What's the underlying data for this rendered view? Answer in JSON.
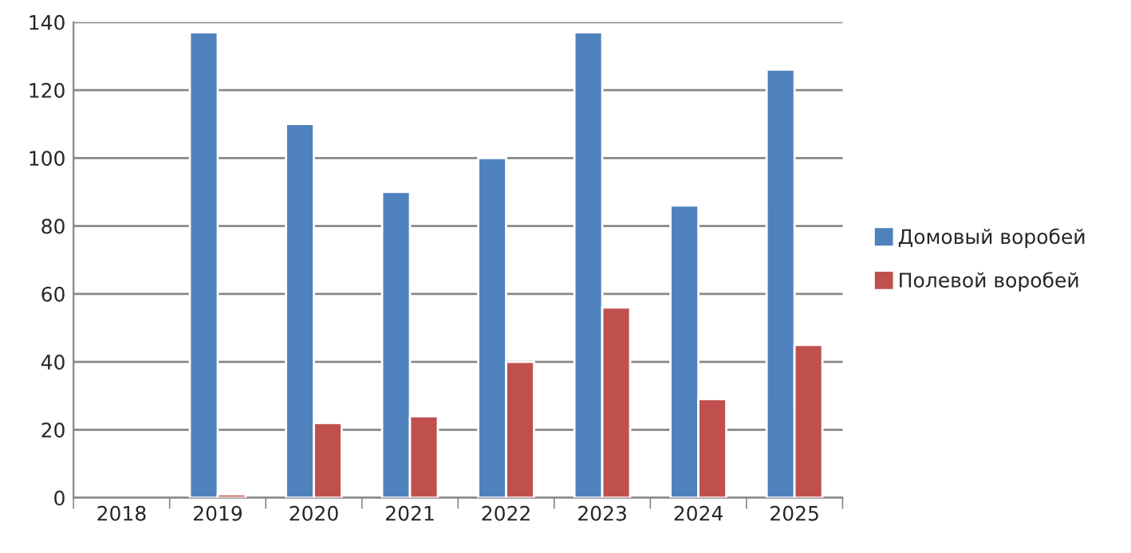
{
  "chart_data": {
    "type": "bar",
    "categories": [
      "2018",
      "2019",
      "2020",
      "2021",
      "2022",
      "2023",
      "2024",
      "2025"
    ],
    "series": [
      {
        "name": "Домовый воробей",
        "color": "#4f81bd",
        "values": [
          null,
          137,
          110,
          90,
          100,
          137,
          86,
          126
        ]
      },
      {
        "name": "Полевой воробей",
        "color": "#c0504d",
        "values": [
          null,
          1,
          22,
          24,
          40,
          56,
          29,
          45
        ]
      }
    ],
    "ylim": [
      0,
      140
    ],
    "yticks": [
      0,
      20,
      40,
      60,
      80,
      100,
      120,
      140
    ],
    "grid": "y",
    "legend": "right"
  }
}
